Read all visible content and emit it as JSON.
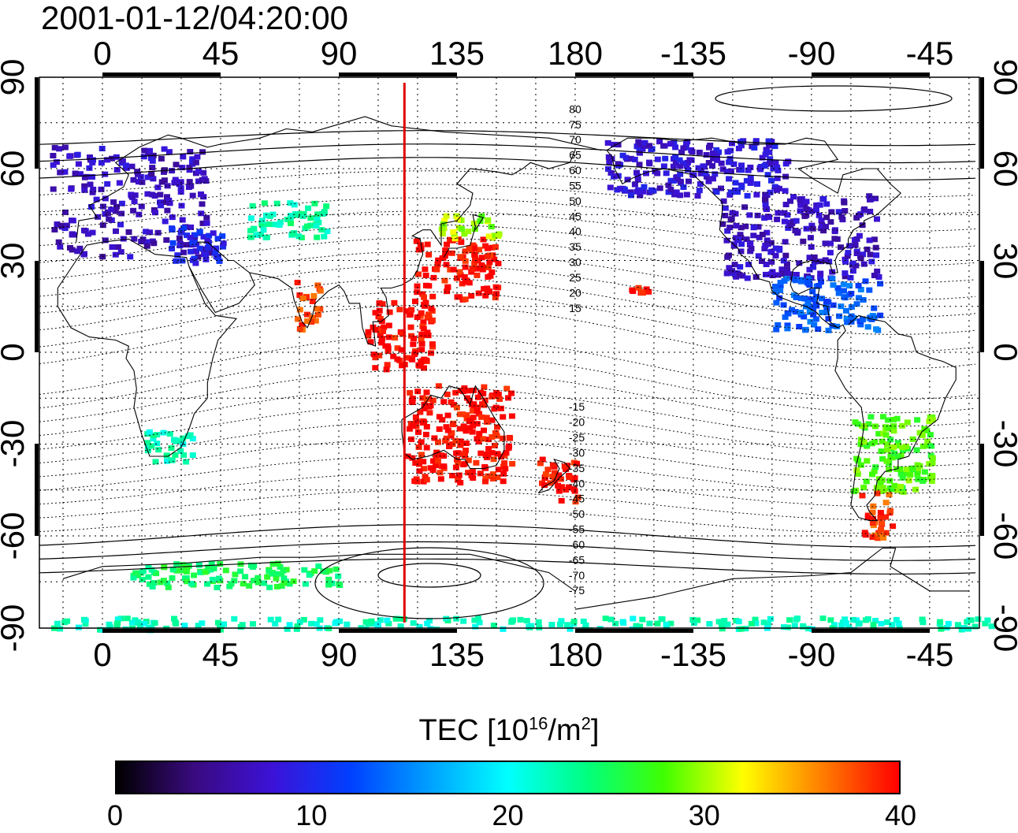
{
  "title": "2001-01-12/04:20:00",
  "top_lon_labels": [
    "0",
    "45",
    "90",
    "135",
    "180",
    "-135",
    "-90",
    "-45"
  ],
  "bottom_lon_labels": [
    "0",
    "45",
    "90",
    "135",
    "180",
    "-135",
    "-90",
    "-45"
  ],
  "left_lat_labels": [
    "90",
    "60",
    "30",
    "0",
    "-30",
    "-60",
    "-90"
  ],
  "right_lat_labels": [
    "90",
    "60",
    "30",
    "0",
    "-30",
    "-60",
    "-90"
  ],
  "contour_labels_north": [
    "80",
    "75",
    "70",
    "65",
    "60",
    "55",
    "50",
    "45",
    "40",
    "35",
    "30",
    "25",
    "20",
    "15"
  ],
  "contour_labels_south": [
    "-15",
    "-20",
    "-25",
    "-30",
    "-35",
    "-40",
    "-45",
    "-50",
    "-55",
    "-60",
    "-65",
    "-70",
    "-75"
  ],
  "terminator_longitude": 115,
  "colorbar": {
    "label_main": "TEC  [10",
    "label_sup1": "16",
    "label_mid": "/m",
    "label_sup2": "2",
    "label_end": "]",
    "ticks": [
      "0",
      "10",
      "20",
      "30",
      "40"
    ],
    "min": 0,
    "max": 40,
    "stops": [
      "#000000",
      "#3a0a80",
      "#3c12d8",
      "#0040ff",
      "#00a0ff",
      "#00ffff",
      "#00ff80",
      "#40ff00",
      "#ffff00",
      "#ff8000",
      "#ff0000"
    ]
  },
  "tec_regions": [
    {
      "name": "europe",
      "lon": [
        -20,
        40
      ],
      "lat": [
        32,
        68
      ],
      "tec": 7
    },
    {
      "name": "mediterranean",
      "lon": [
        25,
        45
      ],
      "lat": [
        30,
        42
      ],
      "tec": 10
    },
    {
      "name": "central-asia",
      "lon": [
        55,
        85
      ],
      "lat": [
        38,
        50
      ],
      "tec": 23
    },
    {
      "name": "east-asia",
      "lon": [
        118,
        150
      ],
      "lat": [
        18,
        38
      ],
      "tec": 40
    },
    {
      "name": "japan-north",
      "lon": [
        128,
        150
      ],
      "lat": [
        38,
        46
      ],
      "tec": 30
    },
    {
      "name": "india",
      "lon": [
        73,
        82
      ],
      "lat": [
        8,
        24
      ],
      "tec": 38
    },
    {
      "name": "southeast-asia",
      "lon": [
        100,
        125
      ],
      "lat": [
        -5,
        18
      ],
      "tec": 40
    },
    {
      "name": "australia",
      "lon": [
        115,
        155
      ],
      "lat": [
        -42,
        -10
      ],
      "tec": 40
    },
    {
      "name": "new-zealand",
      "lon": [
        165,
        180
      ],
      "lat": [
        -48,
        -34
      ],
      "tec": 40
    },
    {
      "name": "hawaii",
      "lon": [
        -160,
        -152
      ],
      "lat": [
        18,
        24
      ],
      "tec": 39
    },
    {
      "name": "north-america",
      "lon": [
        -125,
        -65
      ],
      "lat": [
        25,
        52
      ],
      "tec": 7
    },
    {
      "name": "alaska-canada",
      "lon": [
        -170,
        -100
      ],
      "lat": [
        52,
        70
      ],
      "tec": 8
    },
    {
      "name": "central-america",
      "lon": [
        -105,
        -65
      ],
      "lat": [
        8,
        25
      ],
      "tec": 13
    },
    {
      "name": "south-africa",
      "lon": [
        15,
        35
      ],
      "lat": [
        -35,
        -25
      ],
      "tec": 22
    },
    {
      "name": "south-america-south",
      "lon": [
        -75,
        -45
      ],
      "lat": [
        -45,
        -20
      ],
      "tec": 28
    },
    {
      "name": "patagonia",
      "lon": [
        -72,
        -60
      ],
      "lat": [
        -60,
        -45
      ],
      "tec": 38
    },
    {
      "name": "antarctic-ring",
      "lon": [
        -180,
        180
      ],
      "lat": [
        -90,
        -86
      ],
      "tec": 22
    },
    {
      "name": "antarctic-coast",
      "lon": [
        10,
        90
      ],
      "lat": [
        -76,
        -68
      ],
      "tec": 25
    }
  ]
}
